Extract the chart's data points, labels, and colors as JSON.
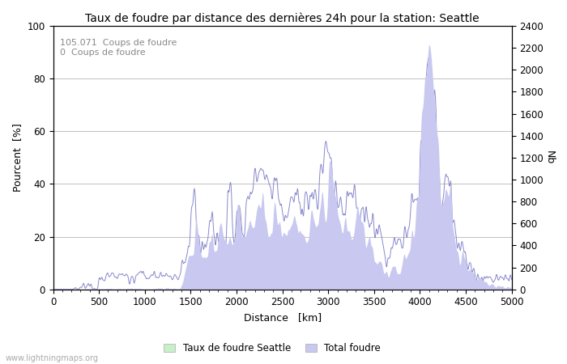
{
  "title": "Taux de foudre par distance des dernières 24h pour la station: Seattle",
  "xlabel": "Distance   [km]",
  "ylabel_left": "Pourcent  [%]",
  "ylabel_right": "Nb",
  "xlim": [
    0,
    5000
  ],
  "ylim_left": [
    0,
    100
  ],
  "ylim_right": [
    0,
    2400
  ],
  "yticks_left": [
    0,
    20,
    40,
    60,
    80,
    100
  ],
  "yticks_right": [
    0,
    200,
    400,
    600,
    800,
    1000,
    1200,
    1400,
    1600,
    1800,
    2000,
    2200,
    2400
  ],
  "xticks": [
    0,
    500,
    1000,
    1500,
    2000,
    2500,
    3000,
    3500,
    4000,
    4500,
    5000
  ],
  "annotation_lines": [
    "105.071  Coups de foudre",
    "0  Coups de foudre"
  ],
  "legend_labels": [
    "Taux de foudre Seattle",
    "Total foudre"
  ],
  "fill_color_total": "#c8c8f0",
  "fill_color_seattle": "#c8f0c8",
  "line_color_total": "#8888cc",
  "line_color_seattle": "#88cc88",
  "background_color": "#ffffff",
  "watermark": "www.lightningmaps.org",
  "grid_color": "#c0c0c0",
  "title_fontsize": 10,
  "axis_fontsize": 9,
  "tick_fontsize": 8.5,
  "annotation_fontsize": 8,
  "annotation_color": "#888888",
  "figsize": [
    7.0,
    4.5
  ],
  "dpi": 100
}
